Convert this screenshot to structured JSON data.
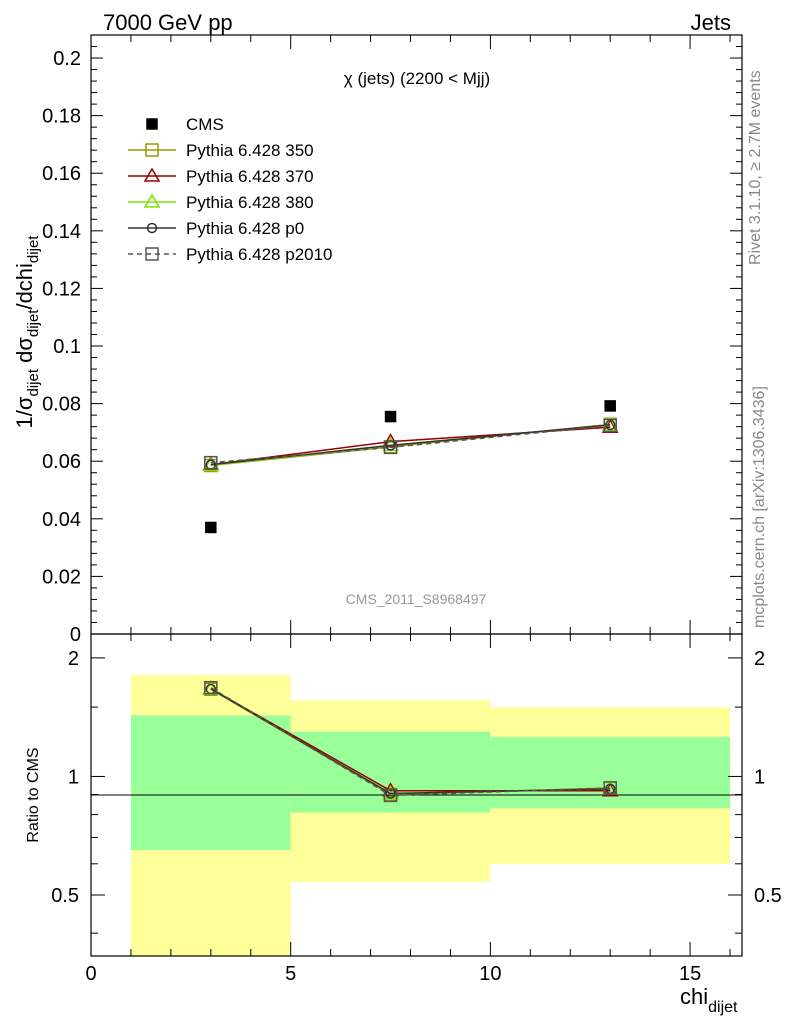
{
  "header": {
    "left": "7000 GeV pp",
    "right": "Jets"
  },
  "side_labels": {
    "rivet": "Rivet 3.1.10, ≥ 2.7M events",
    "mcplots": "mcplots.cern.ch [arXiv:1306.3436]"
  },
  "chart_data": [
    {
      "type": "scatter",
      "title": "χ (jets) (2200 < Mjj)",
      "ylabel": "1/σ_dijet dσ_dijet/dchi_dijet",
      "xlim": [
        0,
        16.3
      ],
      "ylim": [
        0,
        0.208
      ],
      "yticks": [
        "0",
        "0.02",
        "0.04",
        "0.06",
        "0.08",
        "0.1",
        "0.12",
        "0.14",
        "0.16",
        "0.18",
        "0.2"
      ],
      "watermark": "CMS_2011_S8968497",
      "legend_position": "top-left",
      "x": [
        3,
        7.5,
        13
      ],
      "series": [
        {
          "name": "CMS",
          "values": [
            0.037,
            0.0755,
            0.0792
          ],
          "color": "#000000",
          "marker": "square-filled"
        },
        {
          "name": "Pythia 6.428 350",
          "values": [
            0.0585,
            0.065,
            0.0728
          ],
          "color": "#999900",
          "marker": "square-open"
        },
        {
          "name": "Pythia 6.428 370",
          "values": [
            0.0588,
            0.0668,
            0.0718
          ],
          "color": "#990000",
          "marker": "triangle-open"
        },
        {
          "name": "Pythia 6.428 380",
          "values": [
            0.0585,
            0.0655,
            0.0725
          ],
          "color": "#7fdd00",
          "marker": "triangle-open"
        },
        {
          "name": "Pythia 6.428 p0",
          "values": [
            0.0588,
            0.0655,
            0.0726
          ],
          "color": "#333333",
          "marker": "circle-open"
        },
        {
          "name": "Pythia 6.428 p2010",
          "values": [
            0.0595,
            0.0648,
            0.0724
          ],
          "color": "#555555",
          "marker": "square-open",
          "dashed": true
        }
      ]
    },
    {
      "type": "line",
      "ylabel": "Ratio to CMS",
      "xlabel": "chi_dijet",
      "ylim": [
        0.35,
        2.3
      ],
      "yticks": [
        "0.5",
        "1",
        "2"
      ],
      "xticks": [
        "0",
        "5",
        "10",
        "15"
      ],
      "bands": [
        {
          "x": [
            1,
            5
          ],
          "yellow": [
            0.35,
            1.81
          ],
          "green": [
            0.65,
            1.43
          ]
        },
        {
          "x": [
            5,
            10
          ],
          "yellow": [
            0.54,
            1.56
          ],
          "green": [
            0.81,
            1.3
          ]
        },
        {
          "x": [
            10,
            16
          ],
          "yellow": [
            0.6,
            1.5
          ],
          "green": [
            0.83,
            1.26
          ]
        }
      ],
      "x": [
        3,
        7.5,
        13
      ],
      "series": [
        {
          "name": "Pythia 6.428 350",
          "values": [
            1.665,
            0.9,
            0.935
          ]
        },
        {
          "name": "Pythia 6.428 370",
          "values": [
            1.67,
            0.92,
            0.92
          ]
        },
        {
          "name": "Pythia 6.428 380",
          "values": [
            1.665,
            0.905,
            0.93
          ]
        },
        {
          "name": "Pythia 6.428 p0",
          "values": [
            1.668,
            0.905,
            0.93
          ]
        },
        {
          "name": "Pythia 6.428 p2010",
          "values": [
            1.68,
            0.895,
            0.935
          ]
        }
      ]
    }
  ]
}
